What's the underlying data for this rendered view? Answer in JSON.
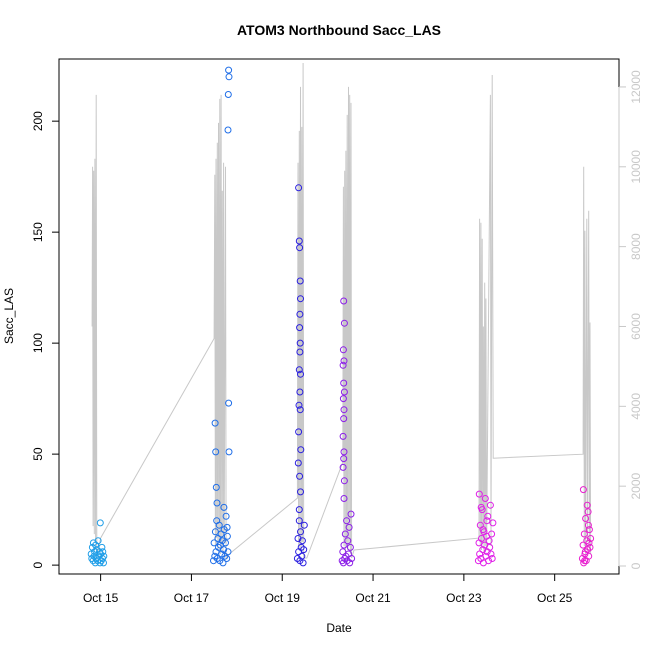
{
  "chart_data": {
    "type": "scatter",
    "title": "ATOM3 Northbound Sacc_LAS",
    "xlabel": "Date",
    "ylabel": "Sacc_LAS",
    "xlim": [
      "2023-10-14T02:00",
      "2023-10-26T10:00"
    ],
    "ylim": [
      -4,
      228
    ],
    "y2lim": [
      -200,
      12700
    ],
    "x_ticks": [
      {
        "value": "2023-10-15T00:00",
        "label": "Oct 15"
      },
      {
        "value": "2023-10-17T00:00",
        "label": "Oct 17"
      },
      {
        "value": "2023-10-19T00:00",
        "label": "Oct 19"
      },
      {
        "value": "2023-10-21T00:00",
        "label": "Oct 21"
      },
      {
        "value": "2023-10-23T00:00",
        "label": "Oct 23"
      },
      {
        "value": "2023-10-25T00:00",
        "label": "Oct 25"
      }
    ],
    "y_ticks": [
      0,
      50,
      100,
      150,
      200
    ],
    "y2_ticks": [
      0,
      2000,
      4000,
      6000,
      8000,
      10000,
      12000
    ],
    "grid": false,
    "line_series": {
      "color": "#c8c8c8",
      "axis": "right",
      "points": [
        [
          "2023-10-14T19:30",
          6000
        ],
        [
          "2023-10-14T19:45",
          10000
        ],
        [
          "2023-10-14T20:00",
          1000
        ],
        [
          "2023-10-14T20:20",
          9900
        ],
        [
          "2023-10-14T20:40",
          800
        ],
        [
          "2023-10-14T21:00",
          10200
        ],
        [
          "2023-10-14T21:20",
          600
        ],
        [
          "2023-10-14T21:40",
          11800
        ],
        [
          "2023-10-14T22:00",
          200
        ],
        [
          "2023-10-15T00:00",
          700
        ],
        [
          "2023-10-17T12:00",
          5700
        ],
        [
          "2023-10-17T12:20",
          9800
        ],
        [
          "2023-10-17T12:40",
          500
        ],
        [
          "2023-10-17T13:00",
          10200
        ],
        [
          "2023-10-17T13:20",
          700
        ],
        [
          "2023-10-17T13:40",
          10600
        ],
        [
          "2023-10-17T14:00",
          400
        ],
        [
          "2023-10-17T14:20",
          11100
        ],
        [
          "2023-10-17T14:40",
          600
        ],
        [
          "2023-10-17T15:00",
          11700
        ],
        [
          "2023-10-17T15:20",
          300
        ],
        [
          "2023-10-17T15:40",
          11800
        ],
        [
          "2023-10-17T16:00",
          500
        ],
        [
          "2023-10-17T16:20",
          9400
        ],
        [
          "2023-10-17T16:40",
          300
        ],
        [
          "2023-10-17T17:00",
          10100
        ],
        [
          "2023-10-17T17:20",
          600
        ],
        [
          "2023-10-17T18:00",
          10000
        ],
        [
          "2023-10-17T18:20",
          200
        ],
        [
          "2023-10-17T20:00",
          300
        ],
        [
          "2023-10-19T08:00",
          1700
        ],
        [
          "2023-10-19T08:20",
          10100
        ],
        [
          "2023-10-19T08:40",
          500
        ],
        [
          "2023-10-19T09:00",
          10900
        ],
        [
          "2023-10-19T09:20",
          400
        ],
        [
          "2023-10-19T09:40",
          12000
        ],
        [
          "2023-10-19T10:00",
          300
        ],
        [
          "2023-10-19T10:20",
          11000
        ],
        [
          "2023-10-19T10:40",
          600
        ],
        [
          "2023-10-19T11:00",
          12600
        ],
        [
          "2023-10-19T11:20",
          200
        ],
        [
          "2023-10-19T13:00",
          200
        ],
        [
          "2023-10-20T08:00",
          2600
        ],
        [
          "2023-10-20T08:20",
          9500
        ],
        [
          "2023-10-20T08:40",
          500
        ],
        [
          "2023-10-20T09:00",
          9900
        ],
        [
          "2023-10-20T09:20",
          300
        ],
        [
          "2023-10-20T09:40",
          10400
        ],
        [
          "2023-10-20T10:00",
          600
        ],
        [
          "2023-10-20T10:20",
          11300
        ],
        [
          "2023-10-20T10:40",
          400
        ],
        [
          "2023-10-20T11:00",
          12000
        ],
        [
          "2023-10-20T11:20",
          500
        ],
        [
          "2023-10-20T11:40",
          11800
        ],
        [
          "2023-10-20T12:00",
          300
        ],
        [
          "2023-10-20T12:20",
          11600
        ],
        [
          "2023-10-20T12:40",
          200
        ],
        [
          "2023-10-20T14:00",
          400
        ],
        [
          "2023-10-23T08:00",
          700
        ],
        [
          "2023-10-23T08:20",
          8700
        ],
        [
          "2023-10-23T08:40",
          500
        ],
        [
          "2023-10-23T09:00",
          8600
        ],
        [
          "2023-10-23T09:20",
          400
        ],
        [
          "2023-10-23T09:40",
          8200
        ],
        [
          "2023-10-23T10:00",
          600
        ],
        [
          "2023-10-23T10:20",
          6000
        ],
        [
          "2023-10-23T10:40",
          300
        ],
        [
          "2023-10-23T11:00",
          7100
        ],
        [
          "2023-10-23T11:20",
          500
        ],
        [
          "2023-10-23T11:40",
          6700
        ],
        [
          "2023-10-23T12:00",
          400
        ],
        [
          "2023-10-23T14:00",
          11800
        ],
        [
          "2023-10-23T14:20",
          500
        ],
        [
          "2023-10-23T15:00",
          12300
        ],
        [
          "2023-10-23T15:30",
          2700
        ],
        [
          "2023-10-25T15:00",
          2800
        ],
        [
          "2023-10-25T15:20",
          10000
        ],
        [
          "2023-10-25T15:40",
          500
        ],
        [
          "2023-10-25T16:00",
          8400
        ],
        [
          "2023-10-25T16:20",
          300
        ],
        [
          "2023-10-25T17:00",
          8700
        ],
        [
          "2023-10-25T17:20",
          600
        ],
        [
          "2023-10-25T18:00",
          8900
        ],
        [
          "2023-10-25T18:20",
          400
        ],
        [
          "2023-10-25T18:40",
          6100
        ],
        [
          "2023-10-25T19:00",
          300
        ]
      ]
    },
    "point_series": [
      {
        "color": "#1f9ee8",
        "points": [
          [
            "2023-10-14T19:00",
            5
          ],
          [
            "2023-10-14T19:20",
            3
          ],
          [
            "2023-10-14T19:40",
            8
          ],
          [
            "2023-10-14T20:00",
            2
          ],
          [
            "2023-10-14T20:10",
            10
          ],
          [
            "2023-10-14T20:30",
            4
          ],
          [
            "2023-10-14T20:50",
            6
          ],
          [
            "2023-10-14T21:10",
            1
          ],
          [
            "2023-10-14T21:20",
            9
          ],
          [
            "2023-10-14T21:40",
            3
          ],
          [
            "2023-10-14T22:00",
            7
          ],
          [
            "2023-10-14T22:20",
            2
          ],
          [
            "2023-10-14T22:40",
            11
          ],
          [
            "2023-10-14T23:00",
            4
          ],
          [
            "2023-10-14T23:20",
            6
          ],
          [
            "2023-10-14T23:40",
            1
          ],
          [
            "2023-10-15T00:00",
            5
          ],
          [
            "2023-10-15T00:20",
            2
          ],
          [
            "2023-10-15T00:40",
            8
          ],
          [
            "2023-10-15T01:00",
            3
          ],
          [
            "2023-10-15T01:10",
            6
          ],
          [
            "2023-10-15T01:30",
            1
          ],
          [
            "2023-10-15T01:40",
            4
          ],
          [
            "2023-10-14T23:50",
            19
          ]
        ]
      },
      {
        "color": "#1f6ee8",
        "points": [
          [
            "2023-10-17T11:40",
            2
          ],
          [
            "2023-10-17T12:00",
            10
          ],
          [
            "2023-10-17T12:20",
            4
          ],
          [
            "2023-10-17T12:40",
            15
          ],
          [
            "2023-10-17T13:00",
            6
          ],
          [
            "2023-10-17T13:20",
            20
          ],
          [
            "2023-10-17T13:40",
            3
          ],
          [
            "2023-10-17T14:00",
            12
          ],
          [
            "2023-10-17T14:20",
            8
          ],
          [
            "2023-10-17T14:40",
            18
          ],
          [
            "2023-10-17T15:00",
            2
          ],
          [
            "2023-10-17T15:20",
            9
          ],
          [
            "2023-10-17T15:40",
            14
          ],
          [
            "2023-10-17T16:00",
            5
          ],
          [
            "2023-10-17T16:20",
            11
          ],
          [
            "2023-10-17T16:40",
            1
          ],
          [
            "2023-10-17T17:00",
            7
          ],
          [
            "2023-10-17T17:20",
            16
          ],
          [
            "2023-10-17T17:40",
            4
          ],
          [
            "2023-10-17T18:00",
            10
          ],
          [
            "2023-10-17T18:20",
            22
          ],
          [
            "2023-10-17T18:40",
            3
          ],
          [
            "2023-10-17T19:00",
            13
          ],
          [
            "2023-10-17T19:20",
            6
          ],
          [
            "2023-10-17T12:30",
            64
          ],
          [
            "2023-10-17T12:50",
            51
          ],
          [
            "2023-10-17T13:10",
            35
          ],
          [
            "2023-10-17T13:30",
            28
          ],
          [
            "2023-10-17T19:40",
            223
          ],
          [
            "2023-10-17T19:50",
            220
          ],
          [
            "2023-10-17T19:30",
            212
          ],
          [
            "2023-10-17T19:20",
            196
          ],
          [
            "2023-10-17T19:40",
            73
          ],
          [
            "2023-10-17T19:50",
            51
          ],
          [
            "2023-10-17T17:10",
            26
          ],
          [
            "2023-10-17T18:50",
            17
          ]
        ]
      },
      {
        "color": "#2a1fe0",
        "points": [
          [
            "2023-10-19T08:00",
            3
          ],
          [
            "2023-10-19T08:20",
            12
          ],
          [
            "2023-10-19T08:40",
            6
          ],
          [
            "2023-10-19T09:00",
            20
          ],
          [
            "2023-10-19T09:20",
            2
          ],
          [
            "2023-10-19T09:40",
            15
          ],
          [
            "2023-10-19T10:00",
            8
          ],
          [
            "2023-10-19T10:20",
            4
          ],
          [
            "2023-10-19T10:40",
            11
          ],
          [
            "2023-10-19T11:00",
            1
          ],
          [
            "2023-10-19T11:20",
            7
          ],
          [
            "2023-10-19T11:40",
            18
          ],
          [
            "2023-10-19T08:40",
            170
          ],
          [
            "2023-10-19T09:00",
            146
          ],
          [
            "2023-10-19T09:10",
            143
          ],
          [
            "2023-10-19T09:30",
            128
          ],
          [
            "2023-10-19T09:40",
            120
          ],
          [
            "2023-10-19T09:20",
            113
          ],
          [
            "2023-10-19T09:10",
            107
          ],
          [
            "2023-10-19T09:30",
            100
          ],
          [
            "2023-10-19T09:20",
            96
          ],
          [
            "2023-10-19T09:00",
            88
          ],
          [
            "2023-10-19T09:40",
            86
          ],
          [
            "2023-10-19T09:20",
            78
          ],
          [
            "2023-10-19T08:50",
            72
          ],
          [
            "2023-10-19T09:30",
            70
          ],
          [
            "2023-10-19T08:40",
            60
          ],
          [
            "2023-10-19T09:50",
            52
          ],
          [
            "2023-10-19T08:30",
            46
          ],
          [
            "2023-10-19T09:10",
            40
          ],
          [
            "2023-10-19T09:40",
            33
          ],
          [
            "2023-10-19T09:00",
            25
          ]
        ]
      },
      {
        "color": "#8c1fe8",
        "points": [
          [
            "2023-10-20T07:40",
            2
          ],
          [
            "2023-10-20T08:00",
            6
          ],
          [
            "2023-10-20T08:20",
            1
          ],
          [
            "2023-10-20T08:40",
            9
          ],
          [
            "2023-10-20T09:00",
            3
          ],
          [
            "2023-10-20T09:20",
            14
          ],
          [
            "2023-10-20T09:40",
            4
          ],
          [
            "2023-10-20T10:00",
            20
          ],
          [
            "2023-10-20T10:20",
            2
          ],
          [
            "2023-10-20T10:40",
            11
          ],
          [
            "2023-10-20T11:00",
            5
          ],
          [
            "2023-10-20T11:20",
            17
          ],
          [
            "2023-10-20T11:40",
            1
          ],
          [
            "2023-10-20T12:00",
            8
          ],
          [
            "2023-10-20T12:20",
            23
          ],
          [
            "2023-10-20T12:40",
            3
          ],
          [
            "2023-10-20T08:30",
            119
          ],
          [
            "2023-10-20T08:50",
            109
          ],
          [
            "2023-10-20T08:20",
            97
          ],
          [
            "2023-10-20T08:40",
            92
          ],
          [
            "2023-10-20T08:10",
            90
          ],
          [
            "2023-10-20T08:30",
            82
          ],
          [
            "2023-10-20T08:50",
            78
          ],
          [
            "2023-10-20T08:20",
            75
          ],
          [
            "2023-10-20T08:40",
            70
          ],
          [
            "2023-10-20T08:30",
            66
          ],
          [
            "2023-10-20T08:10",
            58
          ],
          [
            "2023-10-20T08:40",
            51
          ],
          [
            "2023-10-20T08:30",
            48
          ],
          [
            "2023-10-20T08:10",
            44
          ],
          [
            "2023-10-20T08:50",
            38
          ],
          [
            "2023-10-20T08:40",
            30
          ]
        ]
      },
      {
        "color": "#e01fe8",
        "points": [
          [
            "2023-10-23T07:40",
            2
          ],
          [
            "2023-10-23T08:00",
            10
          ],
          [
            "2023-10-23T08:20",
            5
          ],
          [
            "2023-10-23T08:40",
            18
          ],
          [
            "2023-10-23T09:00",
            3
          ],
          [
            "2023-10-23T09:20",
            12
          ],
          [
            "2023-10-23T09:40",
            25
          ],
          [
            "2023-10-23T10:00",
            7
          ],
          [
            "2023-10-23T10:20",
            1
          ],
          [
            "2023-10-23T10:40",
            15
          ],
          [
            "2023-10-23T11:00",
            9
          ],
          [
            "2023-10-23T11:20",
            30
          ],
          [
            "2023-10-23T11:40",
            4
          ],
          [
            "2023-10-23T12:00",
            13
          ],
          [
            "2023-10-23T12:20",
            6
          ],
          [
            "2023-10-23T12:40",
            22
          ],
          [
            "2023-10-23T13:00",
            2
          ],
          [
            "2023-10-23T13:20",
            11
          ],
          [
            "2023-10-23T13:40",
            8
          ],
          [
            "2023-10-23T14:00",
            27
          ],
          [
            "2023-10-23T14:20",
            5
          ],
          [
            "2023-10-23T14:40",
            14
          ],
          [
            "2023-10-23T15:00",
            3
          ],
          [
            "2023-10-23T15:20",
            19
          ],
          [
            "2023-10-23T08:10",
            32
          ],
          [
            "2023-10-23T09:10",
            26
          ],
          [
            "2023-10-23T10:10",
            16
          ],
          [
            "2023-10-23T12:10",
            20
          ]
        ]
      },
      {
        "color": "#e81fcf",
        "points": [
          [
            "2023-10-25T14:40",
            3
          ],
          [
            "2023-10-25T15:00",
            9
          ],
          [
            "2023-10-25T15:20",
            1
          ],
          [
            "2023-10-25T15:40",
            14
          ],
          [
            "2023-10-25T16:00",
            5
          ],
          [
            "2023-10-25T16:20",
            21
          ],
          [
            "2023-10-25T16:40",
            2
          ],
          [
            "2023-10-25T17:00",
            11
          ],
          [
            "2023-10-25T17:20",
            7
          ],
          [
            "2023-10-25T17:40",
            24
          ],
          [
            "2023-10-25T18:00",
            4
          ],
          [
            "2023-10-25T18:20",
            16
          ],
          [
            "2023-10-25T18:40",
            8
          ],
          [
            "2023-10-25T19:00",
            12
          ],
          [
            "2023-10-25T15:10",
            34
          ],
          [
            "2023-10-25T17:10",
            27
          ],
          [
            "2023-10-25T16:10",
            6
          ],
          [
            "2023-10-25T18:10",
            10
          ],
          [
            "2023-10-25T15:50",
            2
          ],
          [
            "2023-10-25T17:50",
            18
          ]
        ]
      }
    ]
  }
}
